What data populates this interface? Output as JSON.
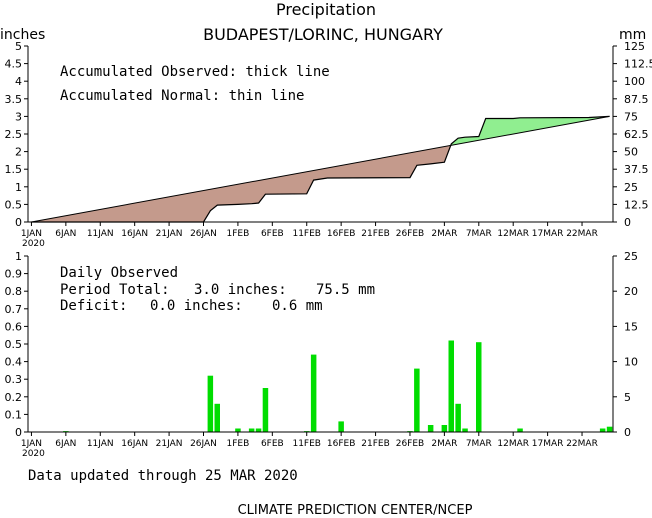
{
  "title": "Precipitation",
  "station": "BUDAPEST/LORINC, HUNGARY",
  "top_panel": {
    "left_unit": "inches",
    "right_unit": "mm",
    "legend_observed": "Accumulated Observed: thick line",
    "legend_normal": "Accumulated Normal: thin line"
  },
  "bottom_panel": {
    "heading": "Daily Observed",
    "period_total_label": "Period Total:",
    "period_total_in": "3.0 inches:",
    "period_total_mm": "75.5 mm",
    "deficit_label": "Deficit:",
    "deficit_in": "0.0 inches:",
    "deficit_mm": "0.6 mm"
  },
  "footer": {
    "updated": "Data updated through 25 MAR 2020",
    "credit": "CLIMATE PREDICTION CENTER/NCEP"
  },
  "colors": {
    "deficit_fill": "#c49a8c",
    "surplus_fill": "#90ee90",
    "bar": "#00dd00"
  },
  "chart_data": [
    {
      "type": "area",
      "title": "Precipitation",
      "x_start": "2020-01-01",
      "x_end": "2020-03-25",
      "xtick_labels": [
        "1JAN",
        "6JAN",
        "11JAN",
        "16JAN",
        "21JAN",
        "26JAN",
        "1FEB",
        "6FEB",
        "11FEB",
        "16FEB",
        "21FEB",
        "26FEB",
        "2MAR",
        "7MAR",
        "12MAR",
        "17MAR",
        "22MAR"
      ],
      "xtick_sublabel": "2020",
      "ylim": [
        0,
        5
      ],
      "yticks_left": [
        "0",
        "0.5",
        "1",
        "1.5",
        "2",
        "2.5",
        "3",
        "3.5",
        "4",
        "4.5",
        "5"
      ],
      "yticks_right": [
        "0",
        "12.5",
        "25",
        "37.5",
        "50",
        "62.5",
        "75",
        "87.5",
        "100",
        "112.5",
        "125"
      ],
      "series": [
        {
          "name": "Accumulated Normal",
          "points": [
            [
              "2020-01-01",
              0.0
            ],
            [
              "2020-03-25",
              3.0
            ]
          ]
        },
        {
          "name": "Accumulated Observed",
          "points": [
            [
              "2020-01-01",
              0.0
            ],
            [
              "2020-01-26",
              0.0
            ],
            [
              "2020-01-27",
              0.32
            ],
            [
              "2020-01-28",
              0.48
            ],
            [
              "2020-01-31",
              0.5
            ],
            [
              "2020-02-02",
              0.52
            ],
            [
              "2020-02-03",
              0.54
            ],
            [
              "2020-02-04",
              0.79
            ],
            [
              "2020-02-10",
              0.8
            ],
            [
              "2020-02-11",
              1.19
            ],
            [
              "2020-02-13",
              1.25
            ],
            [
              "2020-02-25",
              1.26
            ],
            [
              "2020-02-26",
              1.61
            ],
            [
              "2020-02-28",
              1.65
            ],
            [
              "2020-03-01",
              1.7
            ],
            [
              "2020-03-02",
              2.22
            ],
            [
              "2020-03-03",
              2.38
            ],
            [
              "2020-03-04",
              2.41
            ],
            [
              "2020-03-06",
              2.43
            ],
            [
              "2020-03-07",
              2.94
            ],
            [
              "2020-03-11",
              2.94
            ],
            [
              "2020-03-12",
              2.96
            ],
            [
              "2020-03-22",
              2.97
            ],
            [
              "2020-03-25",
              3.0
            ]
          ]
        }
      ]
    },
    {
      "type": "bar",
      "title": "Daily Observed",
      "ylim": [
        0,
        1
      ],
      "yticks_left": [
        "0",
        "0.1",
        "0.2",
        "0.3",
        "0.4",
        "0.5",
        "0.6",
        "0.7",
        "0.8",
        "0.9",
        "1"
      ],
      "yticks_right": [
        "0",
        "5",
        "10",
        "15",
        "20",
        "25"
      ],
      "bars": [
        [
          "2020-01-06",
          0.005
        ],
        [
          "2020-01-27",
          0.32
        ],
        [
          "2020-01-28",
          0.16
        ],
        [
          "2020-01-31",
          0.02
        ],
        [
          "2020-02-02",
          0.02
        ],
        [
          "2020-02-03",
          0.02
        ],
        [
          "2020-02-04",
          0.25
        ],
        [
          "2020-02-10",
          0.005
        ],
        [
          "2020-02-11",
          0.44
        ],
        [
          "2020-02-15",
          0.06
        ],
        [
          "2020-02-25",
          0.005
        ],
        [
          "2020-02-26",
          0.36
        ],
        [
          "2020-02-28",
          0.04
        ],
        [
          "2020-03-01",
          0.04
        ],
        [
          "2020-03-02",
          0.52
        ],
        [
          "2020-03-03",
          0.16
        ],
        [
          "2020-03-04",
          0.02
        ],
        [
          "2020-03-06",
          0.51
        ],
        [
          "2020-03-12",
          0.02
        ],
        [
          "2020-03-24",
          0.02
        ],
        [
          "2020-03-25",
          0.03
        ]
      ]
    }
  ]
}
